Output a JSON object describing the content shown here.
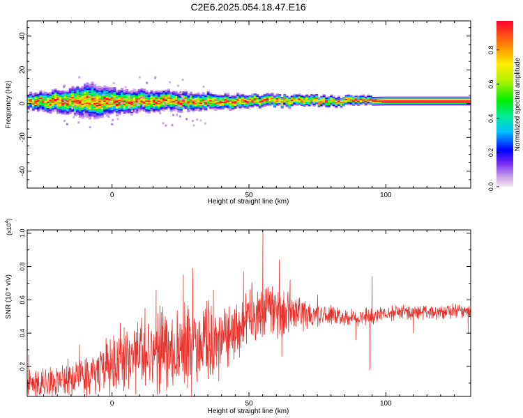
{
  "title": "C2E6.2025.054.18.47.E16",
  "chart_data": [
    {
      "type": "heatmap",
      "xlabel": "Height of straight line (km)",
      "ylabel": "Frequency (Hz)",
      "xlim": [
        -31,
        131
      ],
      "ylim": [
        -50,
        49
      ],
      "xticks": [
        0,
        50,
        100
      ],
      "yticks": [
        -40,
        -20,
        0,
        20,
        40
      ],
      "ridge_frequency_hz": 1.5,
      "spread_profile": [
        {
          "x": -31,
          "halfwidth_hz": 3.5
        },
        {
          "x": -15,
          "halfwidth_hz": 6
        },
        {
          "x": -8,
          "halfwidth_hz": 8
        },
        {
          "x": 0,
          "halfwidth_hz": 6
        },
        {
          "x": 10,
          "halfwidth_hz": 5
        },
        {
          "x": 30,
          "halfwidth_hz": 4
        },
        {
          "x": 50,
          "halfwidth_hz": 3
        },
        {
          "x": 75,
          "halfwidth_hz": 2.5
        },
        {
          "x": 100,
          "halfwidth_hz": 2
        },
        {
          "x": 131,
          "halfwidth_hz": 2
        }
      ],
      "colorbar": {
        "label": "Normalized spectral amplitude",
        "range": [
          0.0,
          0.97
        ],
        "ticks": [
          "0.0",
          "0.2",
          "0.4",
          "0.6",
          "0.8"
        ]
      }
    },
    {
      "type": "line",
      "xlabel": "Height of straight line (km)",
      "ylabel": "SNR (10 * v/v)",
      "exponent_label": "(x10",
      "exponent_power": "4",
      "exponent_close": ")",
      "xlim": [
        -31,
        131
      ],
      "ylim": [
        0.02,
        1.02
      ],
      "xticks": [
        0,
        50,
        100
      ],
      "yticks": [
        "0.2",
        "0.4",
        "0.6",
        "0.8",
        "1.0"
      ],
      "series": [
        {
          "color": "#e8322d",
          "envelope": [
            {
              "x": -31,
              "base": 0.08,
              "amp": 0.1
            },
            {
              "x": -20,
              "base": 0.12,
              "amp": 0.12
            },
            {
              "x": -10,
              "base": 0.15,
              "amp": 0.14
            },
            {
              "x": 0,
              "base": 0.2,
              "amp": 0.2
            },
            {
              "x": 10,
              "base": 0.26,
              "amp": 0.24
            },
            {
              "x": 20,
              "base": 0.3,
              "amp": 0.3
            },
            {
              "x": 30,
              "base": 0.32,
              "amp": 0.32
            },
            {
              "x": 40,
              "base": 0.36,
              "amp": 0.26
            },
            {
              "x": 50,
              "base": 0.5,
              "amp": 0.22
            },
            {
              "x": 60,
              "base": 0.52,
              "amp": 0.18
            },
            {
              "x": 75,
              "base": 0.51,
              "amp": 0.08
            },
            {
              "x": 90,
              "base": 0.49,
              "amp": 0.06
            },
            {
              "x": 100,
              "base": 0.52,
              "amp": 0.06
            },
            {
              "x": 131,
              "base": 0.53,
              "amp": 0.05
            }
          ],
          "spikes": [
            {
              "x": -30.5,
              "y": 0.27
            },
            {
              "x": -12,
              "y": 0.33
            },
            {
              "x": 3,
              "y": 0.46
            },
            {
              "x": 12,
              "y": 0.55
            },
            {
              "x": 16,
              "y": 0.66
            },
            {
              "x": 26,
              "y": 0.75
            },
            {
              "x": 29.5,
              "y": 0.79
            },
            {
              "x": 29,
              "y": 0.02
            },
            {
              "x": 37,
              "y": 0.66
            },
            {
              "x": 48,
              "y": 0.77
            },
            {
              "x": 55,
              "y": 1.02
            },
            {
              "x": 61,
              "y": 0.84
            },
            {
              "x": 62,
              "y": 0.26
            },
            {
              "x": 65,
              "y": 0.72
            },
            {
              "x": 75,
              "y": 0.63
            },
            {
              "x": 95,
              "y": 0.74
            },
            {
              "x": 94.2,
              "y": 0.18
            },
            {
              "x": 89,
              "y": 0.36
            },
            {
              "x": 110,
              "y": 0.4
            },
            {
              "x": 130,
              "y": 0.4
            }
          ]
        }
      ]
    }
  ]
}
